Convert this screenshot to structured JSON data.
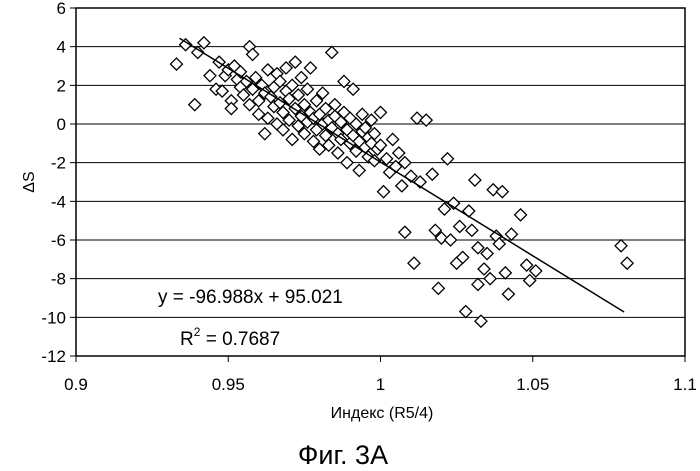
{
  "chart_data": {
    "type": "scatter",
    "title": "",
    "xlabel": "Индекс (R5/4)",
    "ylabel": "ΔS",
    "xlim": [
      0.9,
      1.1
    ],
    "ylim": [
      -12,
      6
    ],
    "x_ticks": [
      "0.9",
      "0.95",
      "1",
      "1.05",
      "1.1"
    ],
    "y_ticks": [
      "6",
      "4",
      "2",
      "0",
      "-2",
      "-4",
      "-6",
      "-8",
      "-10",
      "-12"
    ],
    "grid": "horizontal",
    "marker": "diamond",
    "trendline": {
      "slope": -96.988,
      "intercept": 95.021,
      "x_range": [
        0.934,
        1.08
      ],
      "equation": "y = -96.988x + 95.021",
      "r2_prefix": "R",
      "r2_exp": "2",
      "r2_value": " = 0.7687"
    },
    "caption": "Фиг. 3А",
    "points": [
      [
        0.933,
        3.1
      ],
      [
        0.936,
        4.1
      ],
      [
        0.939,
        1.0
      ],
      [
        0.94,
        3.7
      ],
      [
        0.942,
        4.2
      ],
      [
        0.944,
        2.5
      ],
      [
        0.946,
        1.8
      ],
      [
        0.947,
        3.2
      ],
      [
        0.948,
        1.7
      ],
      [
        0.949,
        2.5
      ],
      [
        0.95,
        2.8
      ],
      [
        0.951,
        1.2
      ],
      [
        0.951,
        0.8
      ],
      [
        0.952,
        3.0
      ],
      [
        0.953,
        2.3
      ],
      [
        0.954,
        1.9
      ],
      [
        0.954,
        2.7
      ],
      [
        0.955,
        1.5
      ],
      [
        0.956,
        2.2
      ],
      [
        0.957,
        4.0
      ],
      [
        0.957,
        1.0
      ],
      [
        0.958,
        1.8
      ],
      [
        0.958,
        3.6
      ],
      [
        0.959,
        2.4
      ],
      [
        0.96,
        1.2
      ],
      [
        0.96,
        0.5
      ],
      [
        0.961,
        2.0
      ],
      [
        0.962,
        1.6
      ],
      [
        0.962,
        -0.5
      ],
      [
        0.963,
        2.8
      ],
      [
        0.963,
        0.3
      ],
      [
        0.964,
        1.4
      ],
      [
        0.965,
        1.9
      ],
      [
        0.965,
        0.9
      ],
      [
        0.966,
        2.6
      ],
      [
        0.966,
        0.0
      ],
      [
        0.967,
        1.1
      ],
      [
        0.967,
        2.2
      ],
      [
        0.968,
        0.6
      ],
      [
        0.968,
        -0.3
      ],
      [
        0.969,
        1.7
      ],
      [
        0.969,
        2.9
      ],
      [
        0.97,
        0.2
      ],
      [
        0.97,
        1.3
      ],
      [
        0.971,
        -0.8
      ],
      [
        0.971,
        2.0
      ],
      [
        0.972,
        0.8
      ],
      [
        0.972,
        3.2
      ],
      [
        0.973,
        1.5
      ],
      [
        0.973,
        -0.1
      ],
      [
        0.974,
        0.4
      ],
      [
        0.974,
        2.4
      ],
      [
        0.975,
        1.0
      ],
      [
        0.975,
        -0.5
      ],
      [
        0.976,
        0.1
      ],
      [
        0.976,
        1.8
      ],
      [
        0.977,
        0.6
      ],
      [
        0.977,
        2.9
      ],
      [
        0.978,
        -0.9
      ],
      [
        0.978,
        0.3
      ],
      [
        0.979,
        1.2
      ],
      [
        0.979,
        -0.3
      ],
      [
        0.98,
        0.5
      ],
      [
        0.98,
        -1.3
      ],
      [
        0.981,
        0.0
      ],
      [
        0.981,
        1.6
      ],
      [
        0.982,
        -0.6
      ],
      [
        0.982,
        0.8
      ],
      [
        0.983,
        0.2
      ],
      [
        0.983,
        -1.1
      ],
      [
        0.984,
        3.7
      ],
      [
        0.984,
        -0.2
      ],
      [
        0.985,
        0.4
      ],
      [
        0.985,
        1.0
      ],
      [
        0.986,
        -0.5
      ],
      [
        0.986,
        -1.5
      ],
      [
        0.987,
        0.1
      ],
      [
        0.987,
        -0.8
      ],
      [
        0.988,
        0.6
      ],
      [
        0.988,
        2.2
      ],
      [
        0.989,
        -0.3
      ],
      [
        0.989,
        -2.0
      ],
      [
        0.99,
        -1.0
      ],
      [
        0.99,
        0.3
      ],
      [
        0.991,
        -0.6
      ],
      [
        0.991,
        1.8
      ],
      [
        0.992,
        -1.4
      ],
      [
        0.992,
        0.0
      ],
      [
        0.993,
        -0.9
      ],
      [
        0.993,
        -2.4
      ],
      [
        0.994,
        -0.4
      ],
      [
        0.994,
        0.5
      ],
      [
        0.995,
        -1.2
      ],
      [
        0.995,
        -0.2
      ],
      [
        0.996,
        -1.7
      ],
      [
        0.996,
        -0.7
      ],
      [
        0.997,
        0.2
      ],
      [
        0.997,
        -1.0
      ],
      [
        0.998,
        -1.9
      ],
      [
        0.998,
        -0.5
      ],
      [
        0.999,
        -1.3
      ],
      [
        1.0,
        0.6
      ],
      [
        1.0,
        -1.1
      ],
      [
        1.001,
        -3.5
      ],
      [
        1.002,
        -1.8
      ],
      [
        1.003,
        -2.5
      ],
      [
        1.004,
        -0.8
      ],
      [
        1.005,
        -2.2
      ],
      [
        1.006,
        -1.5
      ],
      [
        1.007,
        -3.2
      ],
      [
        1.008,
        -2.0
      ],
      [
        1.008,
        -5.6
      ],
      [
        1.01,
        -2.7
      ],
      [
        1.011,
        -7.2
      ],
      [
        1.012,
        0.3
      ],
      [
        1.013,
        -3.0
      ],
      [
        1.015,
        0.2
      ],
      [
        1.017,
        -2.6
      ],
      [
        1.018,
        -5.5
      ],
      [
        1.019,
        -8.5
      ],
      [
        1.02,
        -5.9
      ],
      [
        1.021,
        -4.4
      ],
      [
        1.022,
        -1.8
      ],
      [
        1.023,
        -6.0
      ],
      [
        1.024,
        -4.1
      ],
      [
        1.025,
        -7.2
      ],
      [
        1.026,
        -5.3
      ],
      [
        1.027,
        -6.9
      ],
      [
        1.028,
        -9.7
      ],
      [
        1.029,
        -4.5
      ],
      [
        1.03,
        -5.5
      ],
      [
        1.031,
        -2.9
      ],
      [
        1.032,
        -6.4
      ],
      [
        1.032,
        -8.3
      ],
      [
        1.033,
        -10.2
      ],
      [
        1.034,
        -7.5
      ],
      [
        1.035,
        -6.7
      ],
      [
        1.036,
        -8.0
      ],
      [
        1.037,
        -3.4
      ],
      [
        1.038,
        -5.8
      ],
      [
        1.039,
        -6.2
      ],
      [
        1.04,
        -3.5
      ],
      [
        1.041,
        -7.7
      ],
      [
        1.042,
        -8.8
      ],
      [
        1.043,
        -5.7
      ],
      [
        1.046,
        -4.7
      ],
      [
        1.048,
        -7.3
      ],
      [
        1.049,
        -8.1
      ],
      [
        1.051,
        -7.6
      ],
      [
        1.079,
        -6.3
      ],
      [
        1.081,
        -7.2
      ]
    ]
  }
}
